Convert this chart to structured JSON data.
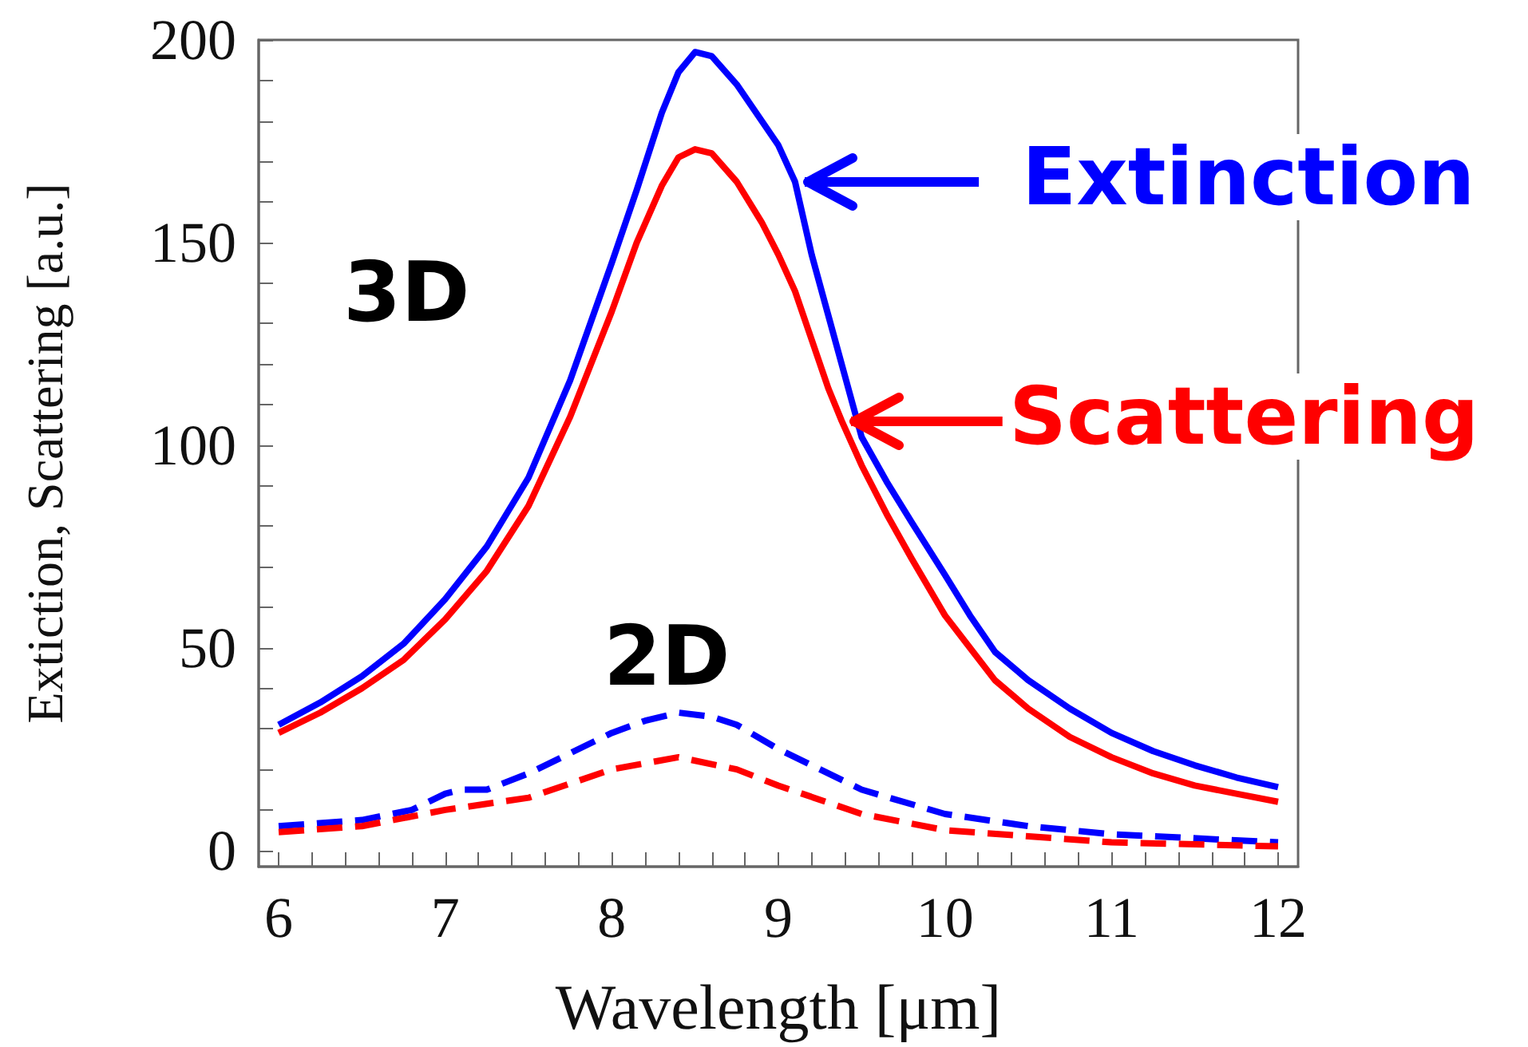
{
  "chart_data": {
    "type": "line",
    "xlabel": "Wavelength [μm]",
    "ylabel": "Extiction, Scattering [a.u.]",
    "xlim": [
      5.88,
      12.12
    ],
    "ylim": [
      -4,
      200
    ],
    "xticks": [
      6,
      {
        "value": 6.2,
        "label": null
      },
      {
        "value": 6.4,
        "label": null
      },
      {
        "value": 6.6,
        "label": null
      },
      {
        "value": 6.8,
        "label": null
      },
      7,
      {
        "value": 7.2,
        "label": null
      },
      {
        "value": 7.4,
        "label": null
      },
      {
        "value": 7.6,
        "label": null
      },
      {
        "value": 7.8,
        "label": null
      },
      8,
      {
        "value": 8.2,
        "label": null
      },
      {
        "value": 8.4,
        "label": null
      },
      {
        "value": 8.6,
        "label": null
      },
      {
        "value": 8.8,
        "label": null
      },
      9,
      {
        "value": 9.2,
        "label": null
      },
      {
        "value": 9.4,
        "label": null
      },
      {
        "value": 9.6,
        "label": null
      },
      {
        "value": 9.8,
        "label": null
      },
      10,
      {
        "value": 10.2,
        "label": null
      },
      {
        "value": 10.4,
        "label": null
      },
      {
        "value": 10.6,
        "label": null
      },
      {
        "value": 10.8,
        "label": null
      },
      11,
      {
        "value": 11.2,
        "label": null
      },
      {
        "value": 11.4,
        "label": null
      },
      {
        "value": 11.6,
        "label": null
      },
      {
        "value": 11.8,
        "label": null
      },
      12
    ],
    "yticks": [
      0,
      {
        "value": 10,
        "label": null
      },
      {
        "value": 20,
        "label": null
      },
      {
        "value": 30,
        "label": null
      },
      {
        "value": 40,
        "label": null
      },
      50,
      {
        "value": 60,
        "label": null
      },
      {
        "value": 70,
        "label": null
      },
      {
        "value": 80,
        "label": null
      },
      {
        "value": 90,
        "label": null
      },
      100,
      {
        "value": 110,
        "label": null
      },
      {
        "value": 120,
        "label": null
      },
      {
        "value": 130,
        "label": null
      },
      {
        "value": 140,
        "label": null
      },
      150,
      {
        "value": 160,
        "label": null
      },
      {
        "value": 170,
        "label": null
      },
      {
        "value": 180,
        "label": null
      },
      {
        "value": 190,
        "label": null
      },
      200
    ],
    "grid": false,
    "legend": "right",
    "marker": "none",
    "annotations": [
      "3D",
      "2D"
    ],
    "series": [
      {
        "name": "Extinction",
        "color": "#0000ff",
        "line_style": "solid",
        "x": [
          6,
          6.25,
          6.5,
          6.75,
          7,
          7.25,
          7.5,
          7.75,
          8,
          8.15,
          8.3,
          8.4,
          8.5,
          8.6,
          8.75,
          8.9,
          9,
          9.1,
          9.2,
          9.3,
          9.4,
          9.5,
          9.65,
          9.8,
          10,
          10.15,
          10.3,
          10.5,
          10.75,
          11,
          11.25,
          11.5,
          11.75,
          12
        ],
        "values": [
          31,
          36.5,
          43,
          51,
          62,
          75,
          92,
          116,
          145,
          163,
          182,
          192,
          197,
          196,
          189,
          180,
          174,
          165,
          147,
          132,
          117,
          102,
          91,
          81,
          68,
          58,
          49,
          42,
          35,
          29,
          24.5,
          21,
          18,
          15.6
        ]
      },
      {
        "name": "Scattering",
        "color": "#ff0000",
        "line_style": "solid",
        "x": [
          6,
          6.25,
          6.5,
          6.75,
          7,
          7.25,
          7.5,
          7.75,
          8,
          8.15,
          8.3,
          8.4,
          8.5,
          8.6,
          8.75,
          8.9,
          9,
          9.1,
          9.2,
          9.3,
          9.38,
          9.5,
          9.65,
          9.8,
          10,
          10.15,
          10.3,
          10.5,
          10.75,
          11,
          11.25,
          11.5,
          11.75,
          12
        ],
        "values": [
          29,
          34,
          40,
          47,
          57,
          69,
          85,
          107,
          133,
          150,
          164,
          171,
          173,
          172,
          165,
          155,
          147,
          138,
          126,
          114,
          106,
          95,
          83,
          72,
          58,
          50,
          42,
          35,
          28,
          23,
          19,
          16,
          14,
          12
        ]
      },
      {
        "color": "#0000ff",
        "line_style": "dashed",
        "x": [
          6,
          6.5,
          6.8,
          7,
          7.1,
          7.25,
          7.5,
          8,
          8.2,
          8.4,
          8.6,
          8.75,
          9,
          9.5,
          10,
          10.5,
          11,
          12
        ],
        "values": [
          6,
          7.5,
          10,
          14,
          15,
          15,
          19,
          29,
          32,
          34,
          33,
          31,
          25,
          15,
          9,
          6,
          4,
          2
        ]
      },
      {
        "color": "#ff0000",
        "line_style": "dashed",
        "x": [
          6,
          6.5,
          7,
          7.5,
          8,
          8.4,
          8.75,
          9,
          9.5,
          10,
          11,
          12
        ],
        "values": [
          4.5,
          6,
          10,
          13,
          20,
          23,
          20,
          16,
          9,
          5,
          2,
          1
        ]
      }
    ]
  }
}
